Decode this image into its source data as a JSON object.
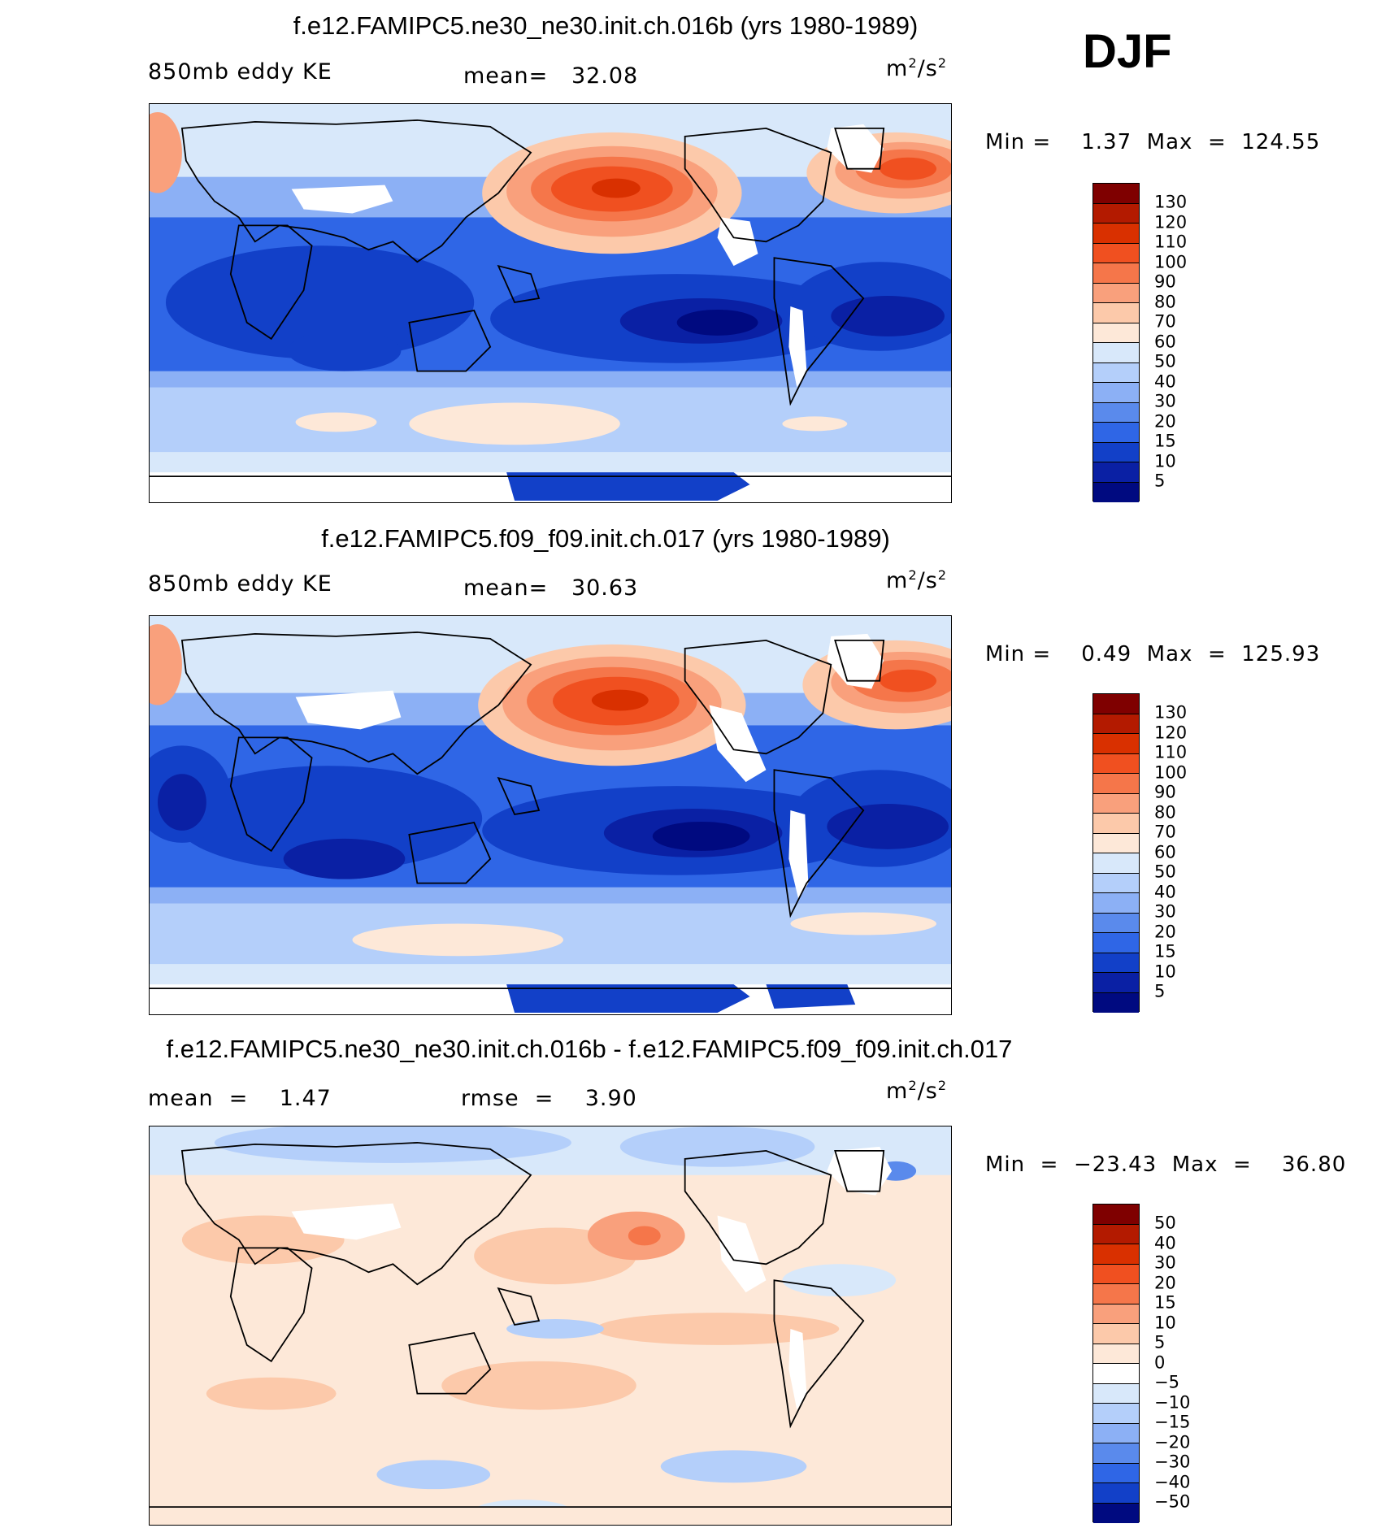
{
  "season": "DJF",
  "units_base": "m",
  "units_exp": "2",
  "units_den": "/s",
  "panels": [
    {
      "title": "f.e12.FAMIPC5.ne30_ne30.init.ch.016b (yrs 1980-1989)",
      "variable": "850mb eddy KE",
      "stat1": "mean=   32.08",
      "minmax": "Min =    1.37  Max  =  124.55",
      "colorbar": {
        "labels": [
          "130",
          "120",
          "110",
          "100",
          "90",
          "80",
          "70",
          "60",
          "50",
          "40",
          "30",
          "20",
          "15",
          "10",
          "5"
        ],
        "colors": [
          "#7f0000",
          "#b31a00",
          "#d93000",
          "#f05020",
          "#f5764a",
          "#f9a07c",
          "#fcc9aa",
          "#fde8d8",
          "#d8e8fa",
          "#b4cffa",
          "#8cb0f5",
          "#5a8aec",
          "#2f66e6",
          "#1240c8",
          "#0a20a4",
          "#000a80"
        ]
      }
    },
    {
      "title": "f.e12.FAMIPC5.f09_f09.init.ch.017 (yrs 1980-1989)",
      "variable": "850mb eddy KE",
      "stat1": "mean=   30.63",
      "minmax": "Min =    0.49  Max  =  125.93",
      "colorbar": {
        "labels": [
          "130",
          "120",
          "110",
          "100",
          "90",
          "80",
          "70",
          "60",
          "50",
          "40",
          "30",
          "20",
          "15",
          "10",
          "5"
        ],
        "colors": [
          "#7f0000",
          "#b31a00",
          "#d93000",
          "#f05020",
          "#f5764a",
          "#f9a07c",
          "#fcc9aa",
          "#fde8d8",
          "#d8e8fa",
          "#b4cffa",
          "#8cb0f5",
          "#5a8aec",
          "#2f66e6",
          "#1240c8",
          "#0a20a4",
          "#000a80"
        ]
      }
    },
    {
      "title": "f.e12.FAMIPC5.ne30_ne30.init.ch.016b - f.e12.FAMIPC5.f09_f09.init.ch.017",
      "stat1": "mean  =    1.47",
      "stat2": "rmse  =    3.90",
      "minmax": "Min  =  −23.43  Max  =    36.80",
      "colorbar": {
        "labels": [
          "50",
          "40",
          "30",
          "20",
          "15",
          "10",
          "5",
          "0",
          "−5",
          "−10",
          "−15",
          "−20",
          "−30",
          "−40",
          "−50"
        ],
        "colors": [
          "#7f0000",
          "#b31a00",
          "#d93000",
          "#f05020",
          "#f5764a",
          "#f9a07c",
          "#fcc9aa",
          "#fde8d8",
          "#ffffff",
          "#d8e8fa",
          "#b4cffa",
          "#8cb0f5",
          "#5a8aec",
          "#2f66e6",
          "#1240c8",
          "#000a80"
        ]
      }
    }
  ]
}
